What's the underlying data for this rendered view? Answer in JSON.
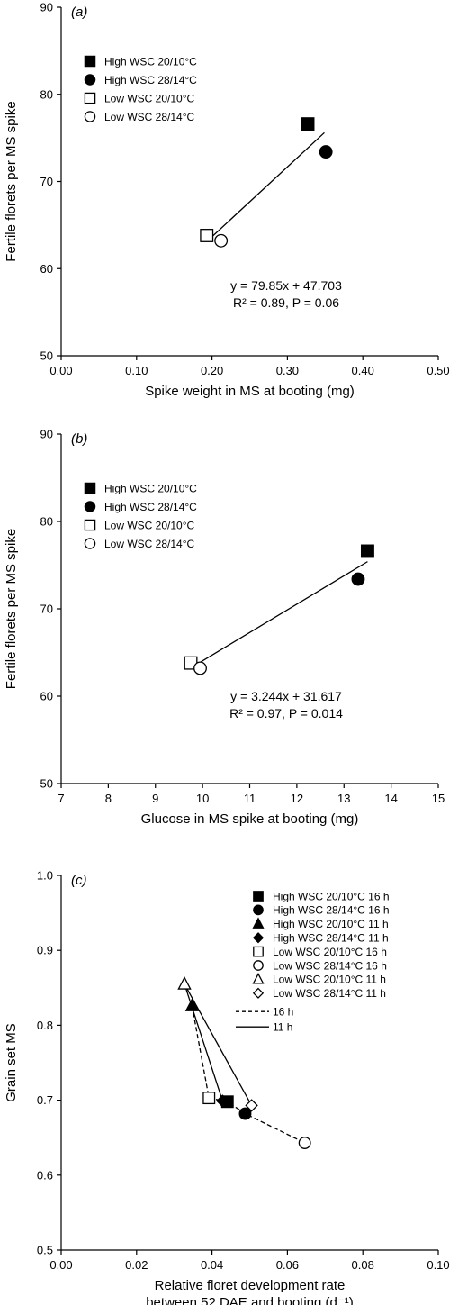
{
  "chart_data": [
    {
      "type": "scatter",
      "panel_label": "a",
      "xlabel": "Spike weight in MS at booting (mg)",
      "ylabel": "Fertile florets per MS spike",
      "xlim": [
        0.0,
        0.5
      ],
      "ylim": [
        50,
        90
      ],
      "xticks": [
        "0.00",
        "0.10",
        "0.20",
        "0.30",
        "0.40",
        "0.50"
      ],
      "yticks": [
        "50",
        "60",
        "70",
        "80",
        "90"
      ],
      "legend_position": "top-left",
      "series": [
        {
          "name": "High WSC 20/10°C",
          "marker": "square-filled",
          "points": [
            [
              0.327,
              76.6
            ]
          ]
        },
        {
          "name": "High WSC 28/14°C",
          "marker": "circle-filled",
          "points": [
            [
              0.351,
              73.4
            ]
          ]
        },
        {
          "name": "Low WSC 20/10°C",
          "marker": "square-open",
          "points": [
            [
              0.193,
              63.8
            ]
          ]
        },
        {
          "name": "Low WSC 28/14°C",
          "marker": "circle-open",
          "points": [
            [
              0.212,
              63.2
            ]
          ]
        }
      ],
      "fit_line": {
        "x": [
          0.198,
          0.349
        ],
        "y": [
          63.5,
          75.6
        ]
      },
      "equation": {
        "line1": "y = 79.85x + 47.703",
        "line2": "R² = 0.89, P = 0.06"
      }
    },
    {
      "type": "scatter",
      "panel_label": "b",
      "xlabel": "Glucose in MS spike at booting (mg)",
      "ylabel": "Fertile florets per MS spike",
      "xlim": [
        7,
        15
      ],
      "ylim": [
        50,
        90
      ],
      "xticks": [
        "7",
        "8",
        "9",
        "10",
        "11",
        "12",
        "13",
        "14",
        "15"
      ],
      "yticks": [
        "50",
        "60",
        "70",
        "80",
        "90"
      ],
      "legend_position": "top-left",
      "series": [
        {
          "name": "High WSC 20/10°C",
          "marker": "square-filled",
          "points": [
            [
              13.5,
              76.6
            ]
          ]
        },
        {
          "name": "High WSC 28/14°C",
          "marker": "circle-filled",
          "points": [
            [
              13.3,
              73.4
            ]
          ]
        },
        {
          "name": "Low WSC 20/10°C",
          "marker": "square-open",
          "points": [
            [
              9.75,
              63.8
            ]
          ]
        },
        {
          "name": "Low WSC 28/14°C",
          "marker": "circle-open",
          "points": [
            [
              9.95,
              63.2
            ]
          ]
        }
      ],
      "fit_line": {
        "x": [
          9.8,
          13.5
        ],
        "y": [
          63.4,
          75.4
        ]
      },
      "equation": {
        "line1": "y = 3.244x + 31.617",
        "line2": "R² = 0.97, P = 0.014"
      }
    },
    {
      "type": "scatter",
      "panel_label": "c",
      "xlabel": "Relative floret development rate",
      "xlabel_line2": "between 52 DAE and booting (d⁻¹)",
      "ylabel": "Grain set MS",
      "xlim": [
        0.0,
        0.1
      ],
      "ylim": [
        0.5,
        1.0
      ],
      "xticks": [
        "0.00",
        "0.02",
        "0.04",
        "0.06",
        "0.08",
        "0.10"
      ],
      "yticks": [
        "0.5",
        "0.6",
        "0.7",
        "0.8",
        "0.9",
        "1.0"
      ],
      "legend_position": "top-right",
      "series": [
        {
          "name": "High WSC 20/10°C 16 h",
          "marker": "square-filled",
          "points": [
            [
              0.0441,
              0.698
            ]
          ]
        },
        {
          "name": "High WSC 28/14°C 16 h",
          "marker": "circle-filled",
          "points": [
            [
              0.0488,
              0.682
            ]
          ]
        },
        {
          "name": "High WSC 20/10°C 11 h",
          "marker": "triangle-filled",
          "points": [
            [
              0.0347,
              0.826
            ]
          ]
        },
        {
          "name": "High WSC 28/14°C 11 h",
          "marker": "diamond-filled",
          "points": [
            [
              0.0428,
              0.699
            ]
          ]
        },
        {
          "name": "Low WSC 20/10°C 16 h",
          "marker": "square-open",
          "points": [
            [
              0.0392,
              0.703
            ]
          ]
        },
        {
          "name": "Low WSC 28/14°C 16 h",
          "marker": "circle-open",
          "points": [
            [
              0.0646,
              0.643
            ]
          ]
        },
        {
          "name": "Low WSC 20/10°C 11 h",
          "marker": "triangle-open",
          "points": [
            [
              0.0327,
              0.855
            ]
          ]
        },
        {
          "name": "Low WSC 28/14°C 11 h",
          "marker": "diamond-open",
          "points": [
            [
              0.0505,
              0.693
            ]
          ]
        }
      ],
      "lines": [
        {
          "name": "16 h",
          "style": "dashed",
          "x": [
            0.0347,
            0.0392,
            0.0441,
            0.0488,
            0.0646
          ],
          "y": [
            0.826,
            0.703,
            0.698,
            0.682,
            0.643
          ]
        },
        {
          "name": "11 h",
          "style": "solid",
          "x": [
            0.0327,
            0.0428
          ],
          "y": [
            0.855,
            0.699
          ]
        },
        {
          "name": "11 h",
          "style": "solid",
          "x": [
            0.0327,
            0.0505
          ],
          "y": [
            0.855,
            0.693
          ]
        }
      ],
      "line_legend": [
        {
          "label": "16 h",
          "style": "dashed"
        },
        {
          "label": "11 h",
          "style": "solid"
        }
      ]
    }
  ]
}
